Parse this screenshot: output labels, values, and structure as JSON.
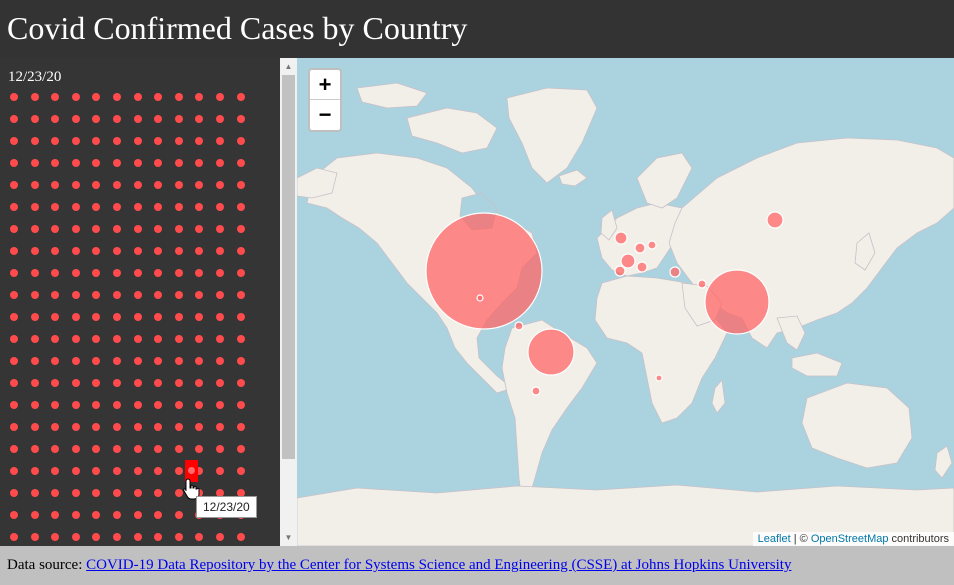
{
  "header": {
    "title": "Covid Confirmed Cases by Country"
  },
  "sidebar": {
    "current_date": "12/23/20",
    "dot_grid": {
      "rows": 21,
      "columns": 12,
      "dot_color": "#ff4b4b",
      "selected_color": "#ff0000"
    },
    "hover_tooltip": "12/23/20"
  },
  "map": {
    "zoom_in_label": "+",
    "zoom_out_label": "−",
    "attribution": {
      "leaflet": "Leaflet",
      "separator": " | © ",
      "osm": "OpenStreetMap",
      "suffix": " contributors"
    },
    "colors": {
      "water": "#aad3df",
      "land": "#f2efe9",
      "border": "#c8c0c8",
      "bubble_fill": "#ff6666",
      "bubble_stroke": "#ffffff"
    },
    "bubbles": [
      {
        "name": "United States",
        "size": "very-large"
      },
      {
        "name": "India",
        "size": "large"
      },
      {
        "name": "Brazil",
        "size": "large"
      },
      {
        "name": "Russia",
        "size": "small"
      },
      {
        "name": "France",
        "size": "small"
      },
      {
        "name": "United Kingdom",
        "size": "small"
      },
      {
        "name": "Italy",
        "size": "small"
      },
      {
        "name": "Spain",
        "size": "small"
      },
      {
        "name": "Germany",
        "size": "small"
      },
      {
        "name": "Poland",
        "size": "small"
      },
      {
        "name": "Turkey",
        "size": "small"
      },
      {
        "name": "Iran",
        "size": "small"
      },
      {
        "name": "Colombia",
        "size": "small"
      },
      {
        "name": "Argentina",
        "size": "small"
      },
      {
        "name": "Mexico",
        "size": "tiny"
      },
      {
        "name": "South Africa",
        "size": "tiny"
      }
    ]
  },
  "footer": {
    "prefix": "Data source: ",
    "link_text": "COVID-19 Data Repository by the Center for Systems Science and Engineering (CSSE) at Johns Hopkins University"
  }
}
